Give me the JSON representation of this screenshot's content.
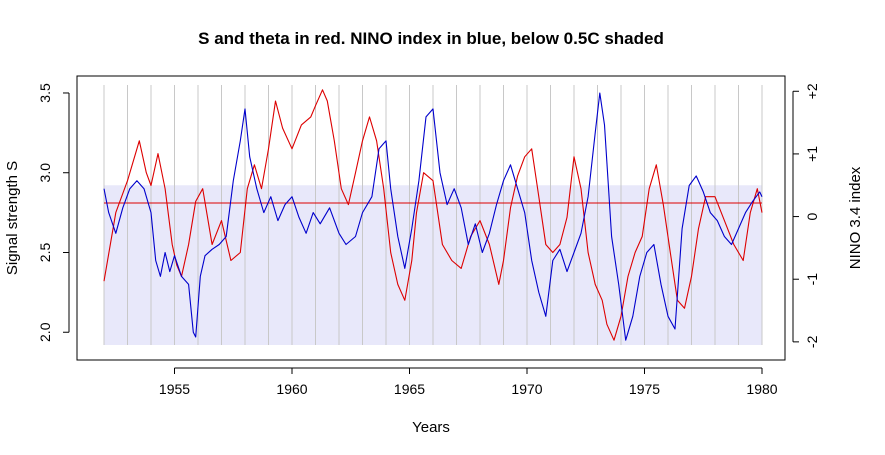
{
  "chart_data": {
    "type": "line",
    "title": "S and theta in red. NINO index in blue, below 0.5C shaded",
    "xlabel": "Years",
    "ylabel": "Signal strength S",
    "ylabel_right": "NINO 3.4 index",
    "xlim": [
      1952,
      1980
    ],
    "ylim": [
      1.92,
      3.55
    ],
    "ylim_right": [
      -2.05,
      2.1
    ],
    "x_ticks": [
      1955,
      1960,
      1965,
      1970,
      1975,
      1980
    ],
    "y_ticks": [
      2.0,
      2.5,
      3.0,
      3.5
    ],
    "y_ticks_right": [
      -2,
      -1,
      0,
      1,
      2
    ],
    "y_tick_labels_right": [
      "-2",
      "-1",
      "0",
      "+1",
      "+2"
    ],
    "vertical_grid_years": [
      1952,
      1953,
      1954,
      1955,
      1956,
      1957,
      1958,
      1959,
      1960,
      1961,
      1962,
      1963,
      1964,
      1965,
      1966,
      1967,
      1968,
      1969,
      1970,
      1971,
      1972,
      1973,
      1974,
      1975,
      1976,
      1977,
      1978,
      1979,
      1980
    ],
    "shade": {
      "x": [
        1952,
        1980
      ],
      "y_right": [
        -2.05,
        0.5
      ],
      "color": "#e8e8fa"
    },
    "colors": {
      "red": "#dd0000",
      "blue": "#0000cc",
      "grid": "#c8c8c8",
      "shade": "#e8e8fa"
    },
    "series": [
      {
        "axis": "left",
        "color": "#dd0000",
        "x": [
          1952.0,
          1952.5,
          1953.0,
          1953.2,
          1953.5,
          1953.8,
          1954.0,
          1954.3,
          1954.6,
          1954.9,
          1955.1,
          1955.3,
          1955.6,
          1955.9,
          1956.2,
          1956.6,
          1957.0,
          1957.4,
          1957.8,
          1958.1,
          1958.4,
          1958.7,
          1959.0,
          1959.3,
          1959.6,
          1960.0,
          1960.4,
          1960.8,
          1961.0,
          1961.3,
          1961.5,
          1961.8,
          1962.1,
          1962.4,
          1962.7,
          1963.0,
          1963.3,
          1963.6,
          1963.9,
          1964.2,
          1964.5,
          1964.8,
          1965.1,
          1965.3,
          1965.6,
          1966.0,
          1966.4,
          1966.8,
          1967.2,
          1967.6,
          1968.0,
          1968.4,
          1968.8,
          1969.0,
          1969.3,
          1969.6,
          1969.9,
          1970.2,
          1970.5,
          1970.8,
          1971.1,
          1971.4,
          1971.7,
          1972.0,
          1972.3,
          1972.6,
          1972.9,
          1973.2,
          1973.4,
          1973.7,
          1974.0,
          1974.3,
          1974.6,
          1974.9,
          1975.2,
          1975.5,
          1975.8,
          1976.1,
          1976.4,
          1976.7,
          1977.0,
          1977.3,
          1977.6,
          1978.0,
          1978.4,
          1978.8,
          1979.2,
          1979.5,
          1979.8,
          1980.0
        ],
        "y": [
          2.32,
          2.75,
          2.95,
          3.05,
          3.2,
          3.0,
          2.92,
          3.12,
          2.9,
          2.55,
          2.42,
          2.35,
          2.55,
          2.82,
          2.9,
          2.55,
          2.7,
          2.45,
          2.5,
          2.9,
          3.05,
          2.9,
          3.15,
          3.45,
          3.28,
          3.15,
          3.3,
          3.35,
          3.42,
          3.52,
          3.45,
          3.2,
          2.9,
          2.8,
          3.0,
          3.2,
          3.35,
          3.2,
          2.9,
          2.5,
          2.3,
          2.2,
          2.45,
          2.75,
          3.0,
          2.95,
          2.55,
          2.45,
          2.4,
          2.6,
          2.7,
          2.55,
          2.3,
          2.45,
          2.78,
          2.98,
          3.1,
          3.15,
          2.85,
          2.55,
          2.5,
          2.55,
          2.72,
          3.1,
          2.9,
          2.5,
          2.3,
          2.2,
          2.05,
          1.95,
          2.1,
          2.35,
          2.5,
          2.6,
          2.9,
          3.05,
          2.8,
          2.5,
          2.2,
          2.15,
          2.35,
          2.65,
          2.85,
          2.85,
          2.7,
          2.55,
          2.45,
          2.75,
          2.9,
          2.75
        ]
      },
      {
        "axis": "left",
        "color": "#dd0000",
        "x": [
          1952,
          1980
        ],
        "y": [
          2.81,
          2.81
        ]
      },
      {
        "axis": "left",
        "color": "#0000cc",
        "x": [
          1952.0,
          1952.2,
          1952.5,
          1952.8,
          1953.1,
          1953.4,
          1953.7,
          1954.0,
          1954.2,
          1954.4,
          1954.6,
          1954.8,
          1955.0,
          1955.3,
          1955.6,
          1955.8,
          1955.9,
          1956.1,
          1956.3,
          1956.6,
          1956.9,
          1957.2,
          1957.5,
          1957.8,
          1958.0,
          1958.2,
          1958.5,
          1958.8,
          1959.1,
          1959.4,
          1959.7,
          1960.0,
          1960.3,
          1960.6,
          1960.9,
          1961.2,
          1961.6,
          1962.0,
          1962.3,
          1962.7,
          1963.0,
          1963.4,
          1963.7,
          1964.0,
          1964.2,
          1964.5,
          1964.8,
          1965.1,
          1965.4,
          1965.7,
          1966.0,
          1966.3,
          1966.6,
          1966.9,
          1967.2,
          1967.5,
          1967.8,
          1968.1,
          1968.4,
          1968.7,
          1969.0,
          1969.3,
          1969.6,
          1969.9,
          1970.2,
          1970.5,
          1970.8,
          1971.1,
          1971.4,
          1971.7,
          1972.0,
          1972.3,
          1972.6,
          1972.9,
          1973.1,
          1973.3,
          1973.6,
          1973.9,
          1974.2,
          1974.5,
          1974.8,
          1975.1,
          1975.4,
          1975.7,
          1976.0,
          1976.3,
          1976.6,
          1976.9,
          1977.2,
          1977.5,
          1977.8,
          1978.1,
          1978.4,
          1978.7,
          1979.0,
          1979.3,
          1979.6,
          1979.9,
          1980.0
        ],
        "y": [
          2.9,
          2.75,
          2.62,
          2.78,
          2.9,
          2.95,
          2.9,
          2.75,
          2.45,
          2.35,
          2.5,
          2.38,
          2.48,
          2.35,
          2.3,
          2.0,
          1.97,
          2.35,
          2.48,
          2.52,
          2.55,
          2.6,
          2.95,
          3.2,
          3.4,
          3.1,
          2.9,
          2.75,
          2.85,
          2.7,
          2.8,
          2.85,
          2.72,
          2.62,
          2.75,
          2.68,
          2.78,
          2.62,
          2.55,
          2.6,
          2.75,
          2.85,
          3.15,
          3.2,
          2.9,
          2.6,
          2.4,
          2.65,
          2.95,
          3.35,
          3.4,
          3.0,
          2.8,
          2.9,
          2.78,
          2.55,
          2.68,
          2.5,
          2.62,
          2.8,
          2.95,
          3.05,
          2.9,
          2.75,
          2.45,
          2.25,
          2.1,
          2.45,
          2.52,
          2.38,
          2.5,
          2.62,
          2.85,
          3.25,
          3.5,
          3.3,
          2.6,
          2.3,
          1.95,
          2.1,
          2.35,
          2.5,
          2.55,
          2.3,
          2.1,
          2.02,
          2.65,
          2.92,
          2.98,
          2.88,
          2.75,
          2.7,
          2.6,
          2.55,
          2.65,
          2.75,
          2.82,
          2.88,
          2.85
        ]
      }
    ]
  }
}
